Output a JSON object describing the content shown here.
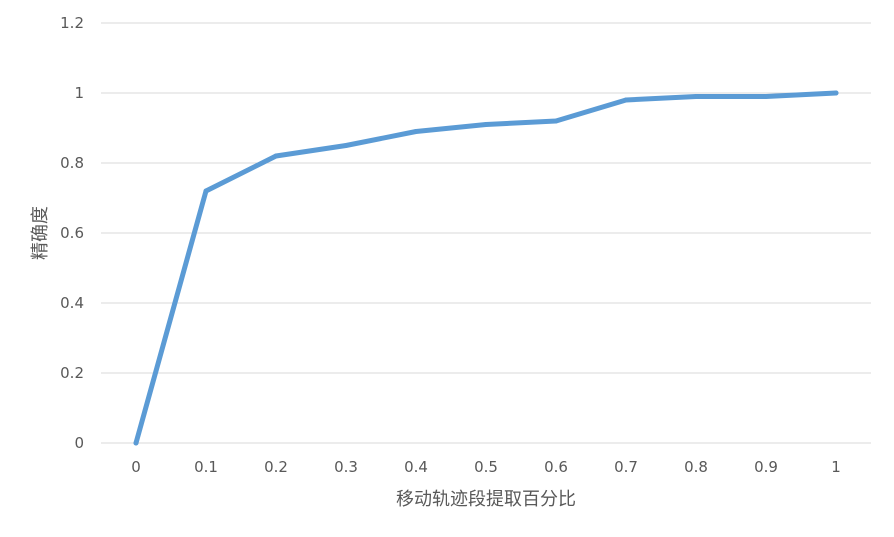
{
  "chart_data": {
    "type": "line",
    "title": "",
    "xlabel": "移动轨迹段提取百分比",
    "ylabel": "精确度",
    "x": [
      0,
      0.1,
      0.2,
      0.3,
      0.4,
      0.5,
      0.6,
      0.7,
      0.8,
      0.9,
      1
    ],
    "x_tick_labels": [
      "0",
      "0.1",
      "0.2",
      "0.3",
      "0.4",
      "0.5",
      "0.6",
      "0.7",
      "0.8",
      "0.9",
      "1"
    ],
    "y_ticks": [
      0,
      0.2,
      0.4,
      0.6,
      0.8,
      1,
      1.2
    ],
    "y_tick_labels": [
      "0",
      "0.2",
      "0.4",
      "0.6",
      "0.8",
      "1",
      "1.2"
    ],
    "ylim": [
      0,
      1.2
    ],
    "grid": true,
    "legend": "none",
    "series": [
      {
        "values": [
          0,
          0.72,
          0.82,
          0.85,
          0.89,
          0.91,
          0.92,
          0.98,
          0.99,
          0.99,
          1.0
        ],
        "color": "#5b9bd5"
      }
    ]
  }
}
